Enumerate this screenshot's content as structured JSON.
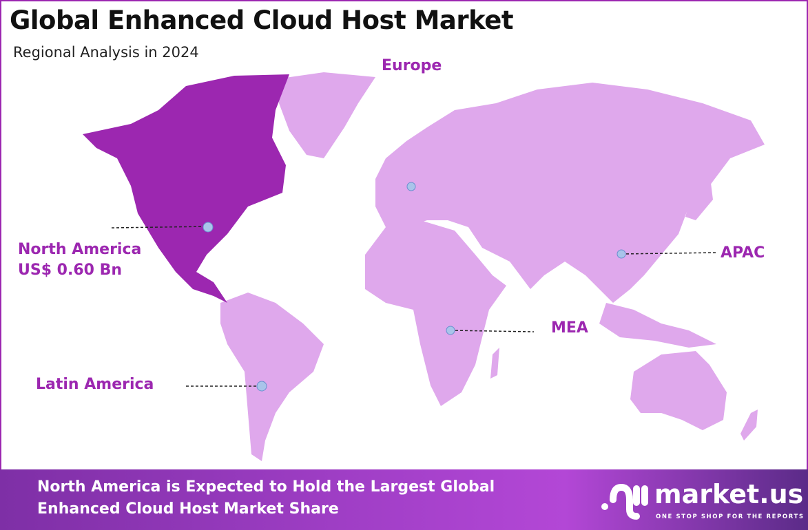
{
  "header": {
    "title": "Global Enhanced Cloud Host Market",
    "subtitle": "Regional Analysis in 2024"
  },
  "colors": {
    "highlight": "#9c27b0",
    "other_regions": "#dfa8ec",
    "label": "#9c27b0",
    "marker": "#a9c4ea"
  },
  "regions": [
    {
      "name": "North America",
      "value": "US$ 0.60 Bn",
      "highlighted": true
    },
    {
      "name": "Europe"
    },
    {
      "name": "APAC"
    },
    {
      "name": "MEA"
    },
    {
      "name": "Latin America"
    }
  ],
  "footer": {
    "line1": "North America is Expected to Hold the Largest Global",
    "line2": "Enhanced Cloud Host Market Share"
  },
  "logo": {
    "name": "market.us",
    "tagline": "ONE STOP SHOP FOR THE REPORTS"
  }
}
